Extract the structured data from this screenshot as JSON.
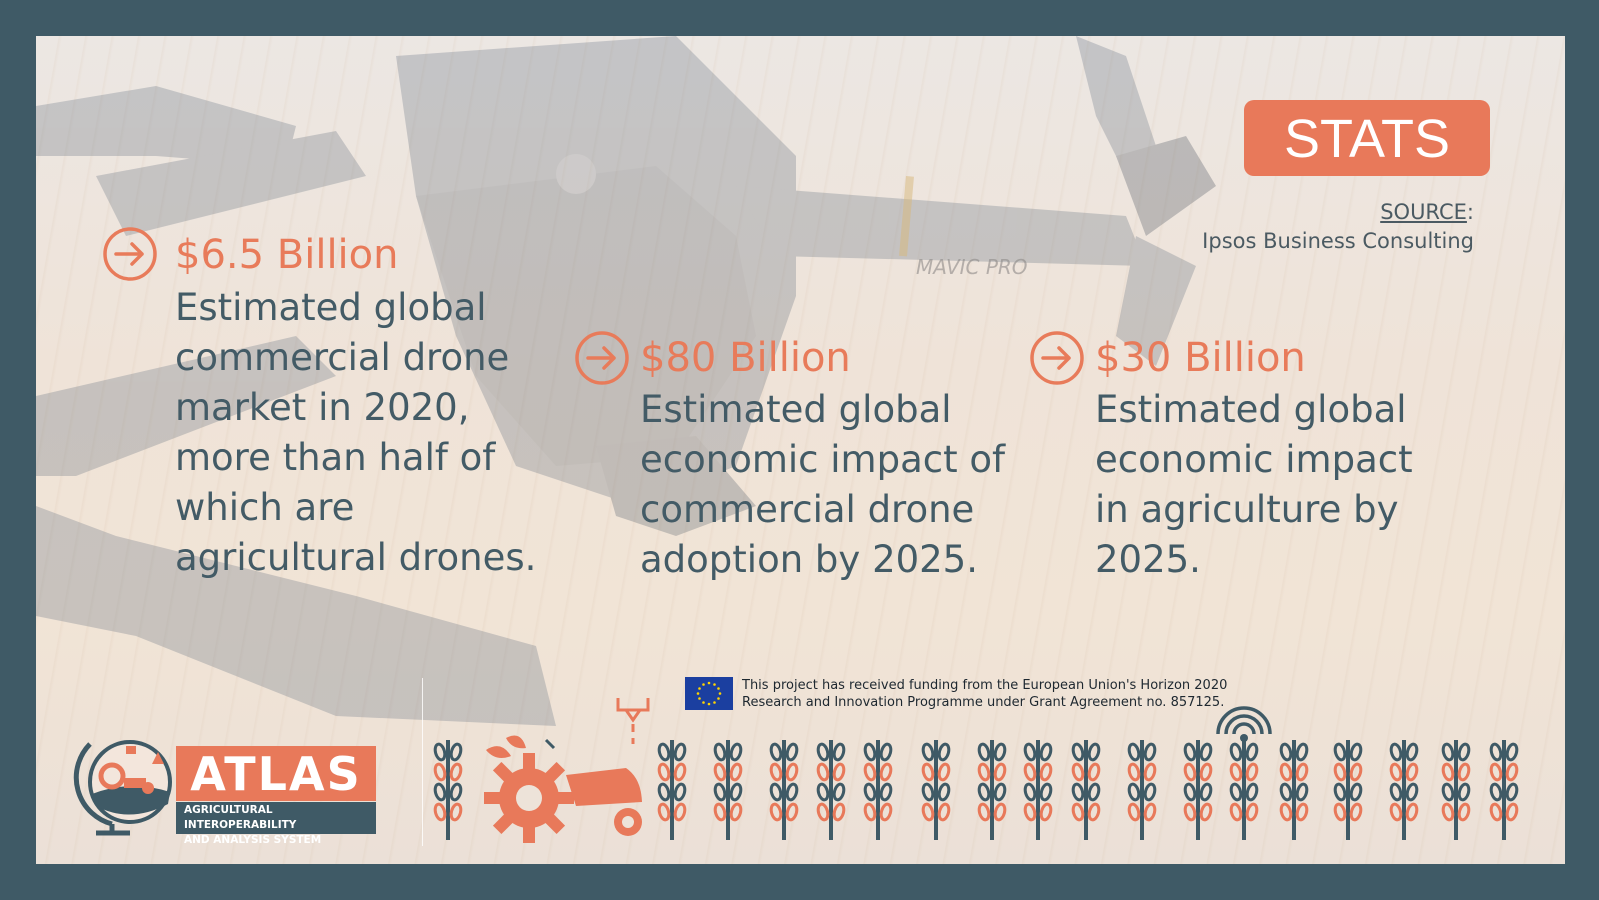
{
  "badge": {
    "label": "STATS"
  },
  "source": {
    "label": "SOURCE",
    "colon": ":",
    "name": "Ipsos Business Consulting"
  },
  "stats": [
    {
      "value": "$6.5 Billion",
      "description": "Estimated global\ncommercial drone\nmarket in 2020,\nmore than half of\nwhich are\nagricultural drones."
    },
    {
      "value": "$80 Billion",
      "description": "Estimated global\neconomic impact of\ncommercial drone\nadoption by 2025."
    },
    {
      "value": "$30 Billion",
      "description": "Estimated global\neconomic impact\nin agriculture by\n2025."
    }
  ],
  "drone_label": "MAVIC PRO",
  "funding": {
    "text": "This project has received funding from the European Union's Horizon 2020\nResearch and Innovation Programme under Grant Agreement no. 857125."
  },
  "logo": {
    "name": "ATLAS",
    "subtitle_line1": "AGRICULTURAL INTEROPERABILITY",
    "subtitle_line2": "AND ANALYSIS SYSTEM"
  },
  "colors": {
    "accent": "#e8795a",
    "dark": "#3f5a66",
    "text": "#435b66"
  },
  "icons": [
    "arrow-right-circle-icon",
    "eu-flag-icon",
    "globe-icon",
    "wheat-icon",
    "gear-icon",
    "tractor-icon",
    "wifi-icon",
    "drone-icon"
  ]
}
